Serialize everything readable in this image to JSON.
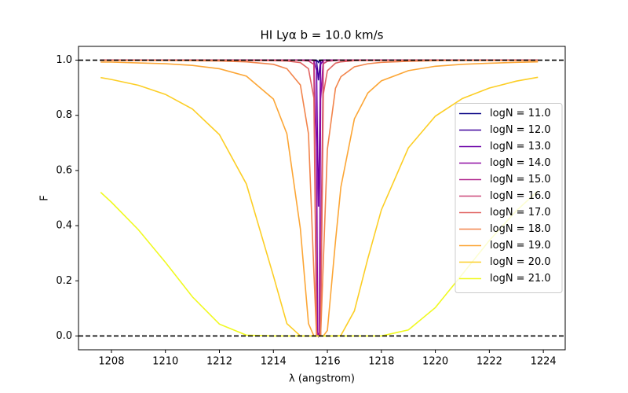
{
  "chart_data": {
    "type": "line",
    "title": "HI Lyα b = 10.0 km/s",
    "xlabel": "λ (angstrom)",
    "ylabel": "F",
    "xlim": [
      1206.78,
      1224.81
    ],
    "ylim": [
      -0.05,
      1.05
    ],
    "xticks": [
      1208,
      1210,
      1212,
      1214,
      1216,
      1218,
      1220,
      1222,
      1224
    ],
    "yticks": [
      {
        "value": 0,
        "label": "0.0"
      },
      0.2,
      0.4,
      0.6,
      0.8,
      {
        "value": 1,
        "label": "1.0"
      }
    ],
    "hlines": [
      0,
      1
    ],
    "hline_color": "#000000",
    "legend": "center right",
    "x": [
      1207.6,
      1208,
      1209,
      1210,
      1211,
      1212,
      1213,
      1214,
      1214.5,
      1215,
      1215.3,
      1215.5,
      1215.6,
      1215.64,
      1215.67,
      1215.7,
      1215.75,
      1215.85,
      1216,
      1216.3,
      1216.5,
      1217,
      1217.5,
      1218,
      1219,
      1220,
      1221,
      1222,
      1223,
      1223.8
    ],
    "series": [
      {
        "name": "logN = 11.0",
        "color": "#0d0887",
        "values": [
          1,
          1,
          1,
          1,
          1,
          1,
          1,
          1,
          1,
          1,
          1,
          1,
          1,
          0.996,
          0.992,
          0.996,
          1,
          1,
          1,
          1,
          1,
          1,
          1,
          1,
          1,
          1,
          1,
          1,
          1,
          1
        ]
      },
      {
        "name": "logN = 12.0",
        "color": "#41049d",
        "values": [
          1,
          1,
          1,
          1,
          1,
          1,
          1,
          1,
          1,
          1,
          1,
          1,
          0.996,
          0.957,
          0.927,
          0.957,
          0.998,
          1,
          1,
          1,
          1,
          1,
          1,
          1,
          1,
          1,
          1,
          1,
          1,
          1
        ]
      },
      {
        "name": "logN = 13.0",
        "color": "#6a00a8",
        "values": [
          1,
          1,
          1,
          1,
          1,
          1,
          1,
          1,
          1,
          1,
          1,
          1,
          0.963,
          0.644,
          0.469,
          0.644,
          0.985,
          1,
          1,
          1,
          1,
          1,
          1,
          1,
          1,
          1,
          1,
          1,
          1,
          1
        ]
      },
      {
        "name": "logN = 14.0",
        "color": "#8f0da4",
        "values": [
          1,
          1,
          1,
          1,
          1,
          1,
          1,
          1,
          1,
          1,
          1,
          1,
          0.685,
          0.012,
          0.001,
          0.012,
          0.859,
          1,
          1,
          1,
          1,
          1,
          1,
          1,
          1,
          1,
          1,
          1,
          1,
          1
        ]
      },
      {
        "name": "logN = 15.0",
        "color": "#b12a90",
        "values": [
          1,
          1,
          1,
          1,
          1,
          1,
          1,
          1,
          1,
          1,
          1,
          0.999,
          0.022,
          0,
          0,
          0,
          0.217,
          0.999,
          1,
          1,
          1,
          1,
          1,
          1,
          1,
          1,
          1,
          1,
          1,
          1
        ]
      },
      {
        "name": "logN = 16.0",
        "color": "#cc4778",
        "values": [
          1,
          1,
          1,
          1,
          1,
          1,
          1,
          1,
          1,
          0.999,
          0.997,
          0.985,
          0,
          0,
          0,
          0,
          0,
          0.987,
          0.996,
          0.999,
          1,
          1,
          1,
          1,
          1,
          1,
          1,
          1,
          1,
          1
        ]
      },
      {
        "name": "logN = 17.0",
        "color": "#e16462",
        "values": [
          1,
          1,
          1,
          1,
          1,
          1,
          0.999,
          0.998,
          0.997,
          0.991,
          0.969,
          0.863,
          0,
          0,
          0,
          0,
          0,
          0.877,
          0.962,
          0.989,
          0.994,
          0.998,
          0.999,
          0.999,
          1,
          1,
          1,
          1,
          1,
          1
        ]
      },
      {
        "name": "logN = 18.0",
        "color": "#f2844b",
        "values": [
          0.999,
          0.999,
          0.999,
          0.999,
          0.998,
          0.997,
          0.994,
          0.985,
          0.969,
          0.91,
          0.733,
          0.23,
          0,
          0,
          0,
          0,
          0,
          0.269,
          0.677,
          0.898,
          0.94,
          0.976,
          0.987,
          0.992,
          0.996,
          0.998,
          0.999,
          0.999,
          0.999,
          0.999
        ]
      },
      {
        "name": "logN = 19.0",
        "color": "#fca636",
        "values": [
          0.993,
          0.993,
          0.99,
          0.987,
          0.981,
          0.969,
          0.942,
          0.859,
          0.733,
          0.388,
          0.045,
          0,
          0,
          0,
          0,
          0,
          0,
          0,
          0.02,
          0.343,
          0.54,
          0.787,
          0.881,
          0.925,
          0.962,
          0.978,
          0.985,
          0.989,
          0.992,
          0.994
        ]
      },
      {
        "name": "logN = 20.0",
        "color": "#fcce25",
        "values": [
          0.937,
          0.93,
          0.909,
          0.876,
          0.823,
          0.73,
          0.551,
          0.218,
          0.045,
          0,
          0,
          0,
          0,
          0,
          0,
          0,
          0,
          0,
          0,
          0,
          0.002,
          0.091,
          0.281,
          0.457,
          0.682,
          0.797,
          0.861,
          0.899,
          0.924,
          0.938
        ]
      },
      {
        "name": "logN = 21.0",
        "color": "#f0f921",
        "values": [
          0.521,
          0.485,
          0.385,
          0.267,
          0.142,
          0.043,
          0.003,
          0,
          0,
          0,
          0,
          0,
          0,
          0,
          0,
          0,
          0,
          0,
          0,
          0,
          0,
          0,
          0,
          0,
          0.022,
          0.103,
          0.224,
          0.346,
          0.454,
          0.526
        ]
      }
    ]
  }
}
